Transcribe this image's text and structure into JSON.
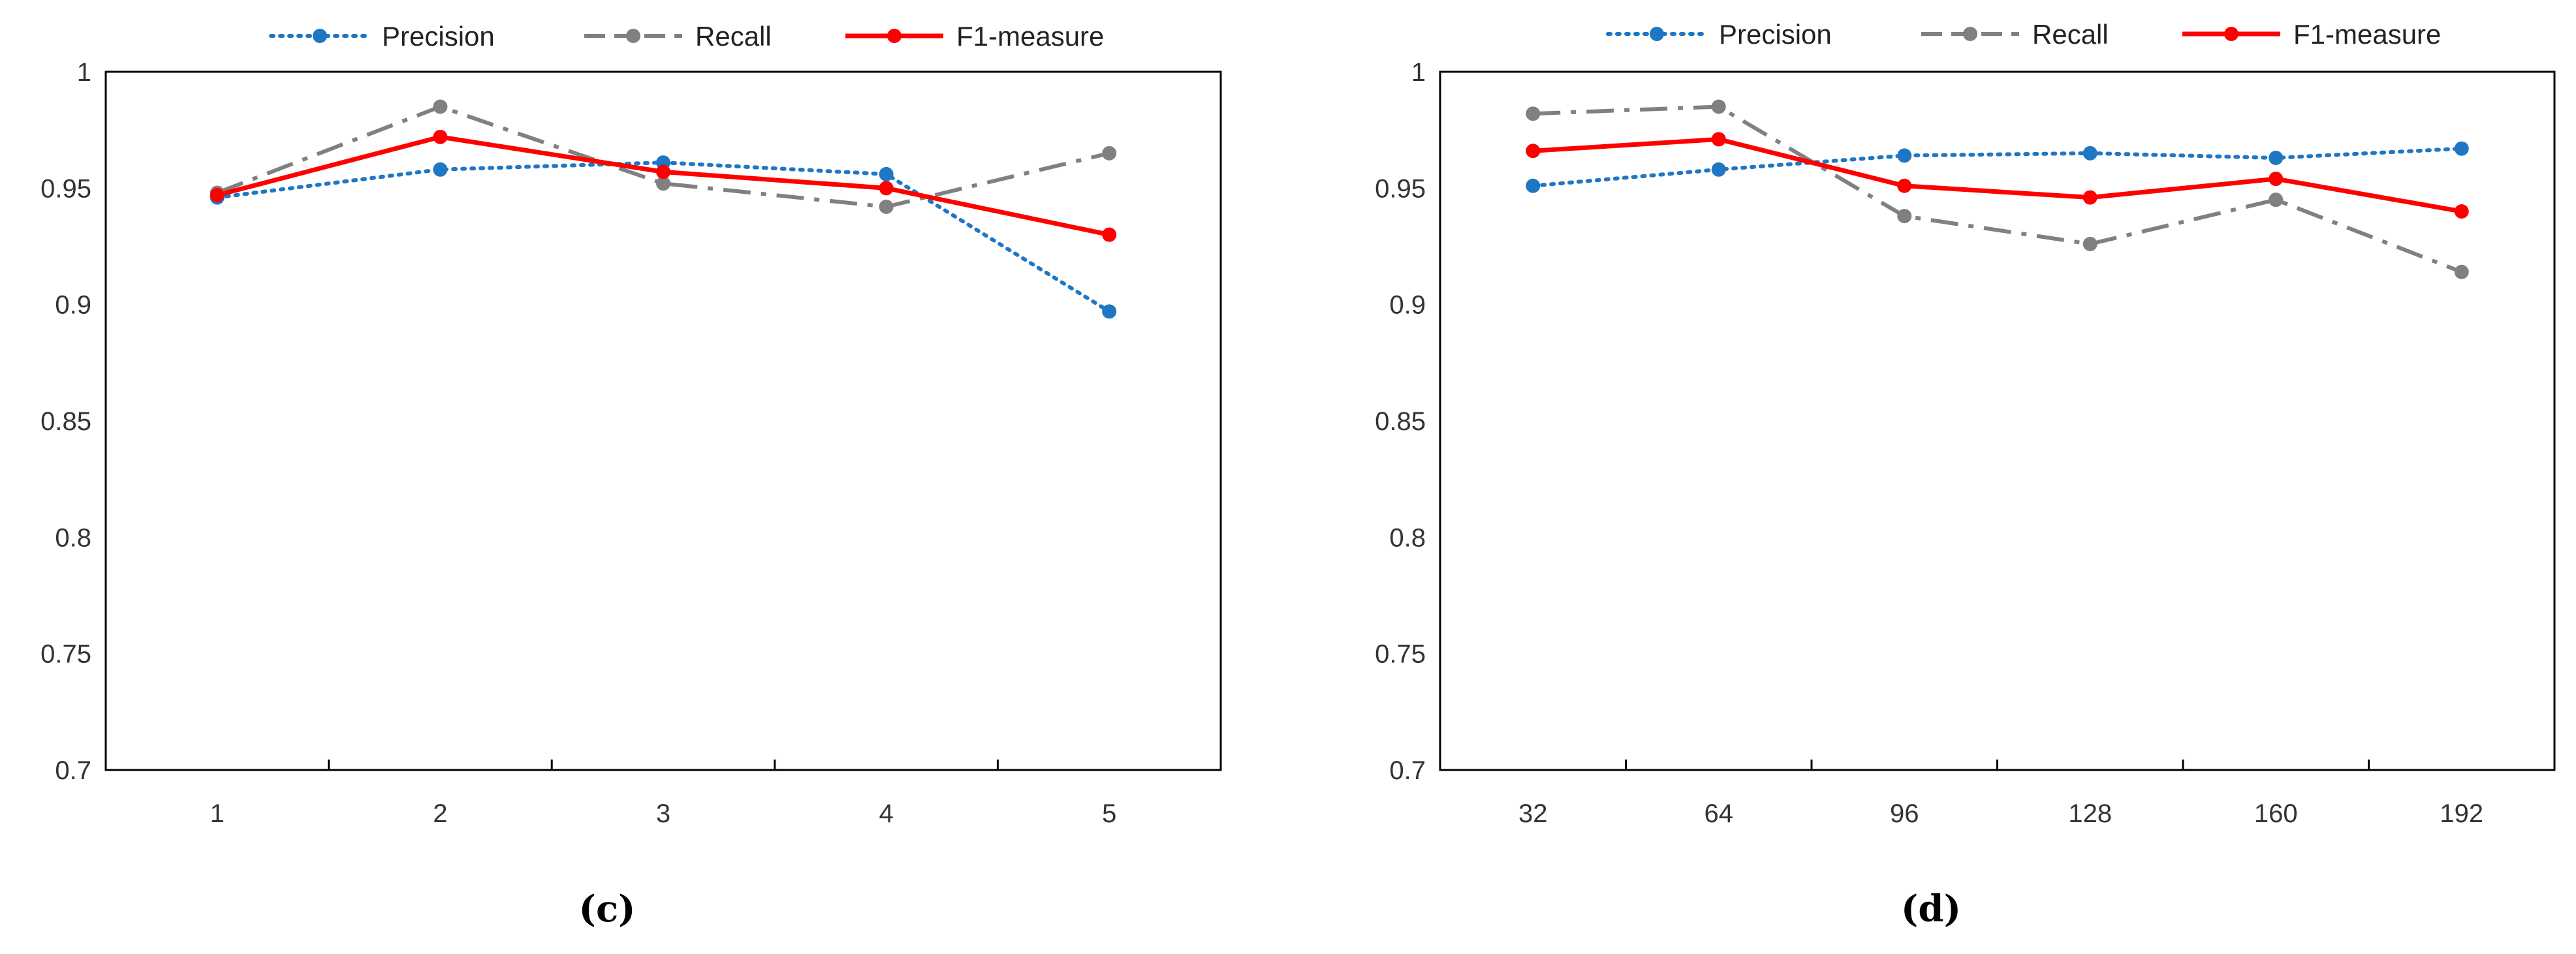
{
  "legend": {
    "precision": "Precision",
    "recall": "Recall",
    "f1": "F1-measure"
  },
  "colors": {
    "precision": "#1f77c4",
    "recall": "#808080",
    "f1": "#ff0000",
    "axis": "#000000"
  },
  "chart_data": [
    {
      "type": "line",
      "caption": "(c)",
      "categories": [
        "1",
        "2",
        "3",
        "4",
        "5"
      ],
      "series": [
        {
          "name": "Precision",
          "values": [
            0.946,
            0.958,
            0.961,
            0.956,
            0.897
          ]
        },
        {
          "name": "Recall",
          "values": [
            0.948,
            0.985,
            0.952,
            0.942,
            0.965
          ]
        },
        {
          "name": "F1-measure",
          "values": [
            0.947,
            0.972,
            0.957,
            0.95,
            0.93
          ]
        }
      ],
      "ylim": [
        0.7,
        1
      ],
      "yticks": [
        "0.7",
        "0.75",
        "0.8",
        "0.85",
        "0.9",
        "0.95",
        "1"
      ],
      "legend_position": "top",
      "grid": false
    },
    {
      "type": "line",
      "caption": "(d)",
      "categories": [
        "32",
        "64",
        "96",
        "128",
        "160",
        "192"
      ],
      "series": [
        {
          "name": "Precision",
          "values": [
            0.951,
            0.958,
            0.964,
            0.965,
            0.963,
            0.967
          ]
        },
        {
          "name": "Recall",
          "values": [
            0.982,
            0.985,
            0.938,
            0.926,
            0.945,
            0.914
          ]
        },
        {
          "name": "F1-measure",
          "values": [
            0.966,
            0.971,
            0.951,
            0.946,
            0.954,
            0.94
          ]
        }
      ],
      "ylim": [
        0.7,
        1
      ],
      "yticks": [
        "0.7",
        "0.75",
        "0.8",
        "0.85",
        "0.9",
        "0.95",
        "1"
      ],
      "legend_position": "top",
      "grid": false
    }
  ]
}
